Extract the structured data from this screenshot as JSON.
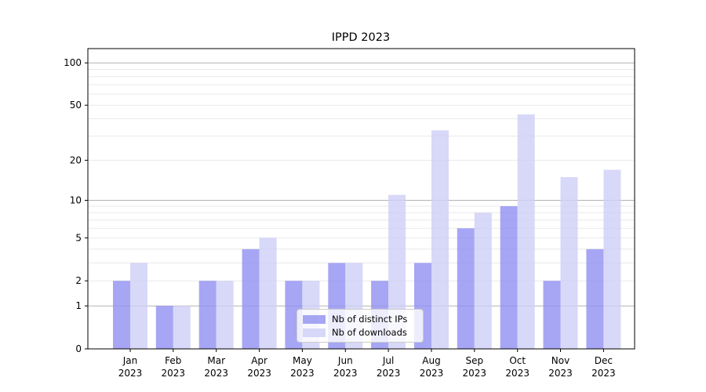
{
  "title": "IPPD 2023",
  "chart_data": {
    "type": "bar",
    "title": "IPPD 2023",
    "categories": [
      "Jan 2023",
      "Feb 2023",
      "Mar 2023",
      "Apr 2023",
      "May 2023",
      "Jun 2023",
      "Jul 2023",
      "Aug 2023",
      "Sep 2023",
      "Oct 2023",
      "Nov 2023",
      "Dec 2023"
    ],
    "series": [
      {
        "name": "Nb of distinct IPs",
        "color": "#9393f2",
        "values": [
          2,
          1,
          2,
          4,
          2,
          3,
          2,
          3,
          6,
          9,
          2,
          4
        ]
      },
      {
        "name": "Nb of downloads",
        "color": "#cfcff7",
        "values": [
          3,
          1,
          2,
          5,
          2,
          3,
          11,
          33,
          8,
          43,
          15,
          17
        ]
      }
    ],
    "bar_alpha": 0.82,
    "xlabel": "",
    "ylabel": "",
    "y_scale": "log10(1+value)",
    "y_ticks": [
      0,
      1,
      2,
      5,
      10,
      20,
      50,
      100
    ],
    "y_major_gridlines": [
      1,
      10,
      100
    ],
    "y_minor_gridlines": [
      2,
      3,
      4,
      5,
      6,
      7,
      8,
      9,
      20,
      30,
      40,
      50,
      60,
      70,
      80,
      90
    ],
    "ylim": [
      0,
      127
    ],
    "grid": true,
    "legend_position": "lower center"
  },
  "colors": {
    "major_grid": "#b3b3b3",
    "minor_grid": "#e9e9e9",
    "axis": "#000000",
    "text": "#000000",
    "background": "#ffffff"
  }
}
